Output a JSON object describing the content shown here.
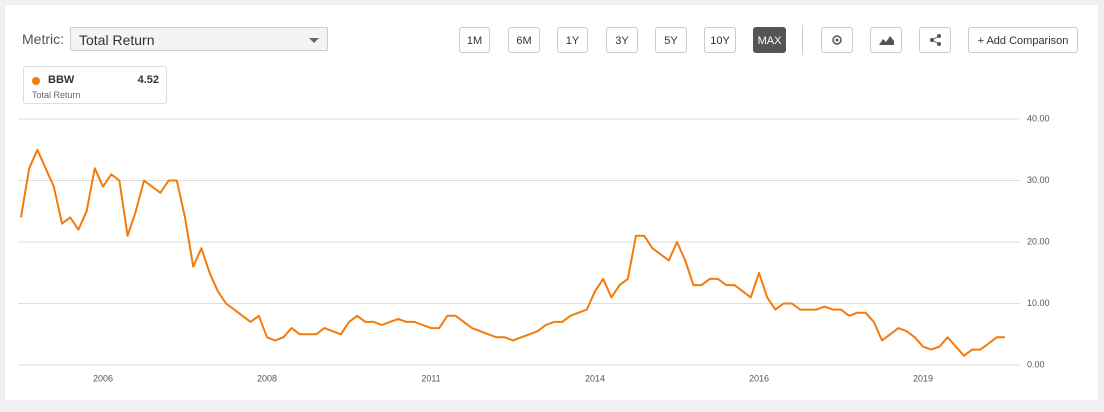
{
  "ui": {
    "metric_label": "Metric:",
    "metric_value": "Total Return",
    "ranges": [
      "1M",
      "6M",
      "1Y",
      "3Y",
      "5Y",
      "10Y",
      "MAX"
    ],
    "add_comparison": "+ Add Comparison",
    "legend": {
      "value": 4.52,
      "subtitle": "Total Return"
    }
  },
  "chart_data": {
    "type": "line",
    "categories": [
      null,
      null,
      null,
      null,
      null,
      null,
      null,
      null,
      null,
      null,
      "2006",
      null,
      null,
      null,
      null,
      null,
      null,
      null,
      null,
      null,
      null,
      null,
      null,
      null,
      null,
      null,
      null,
      null,
      null,
      null,
      "2008",
      null,
      null,
      null,
      null,
      null,
      null,
      null,
      null,
      null,
      null,
      null,
      null,
      null,
      null,
      null,
      null,
      null,
      null,
      null,
      "2011",
      null,
      null,
      null,
      null,
      null,
      null,
      null,
      null,
      null,
      null,
      null,
      null,
      null,
      null,
      null,
      null,
      null,
      null,
      null,
      "2014",
      null,
      null,
      null,
      null,
      null,
      null,
      null,
      null,
      null,
      null,
      null,
      null,
      null,
      null,
      null,
      null,
      null,
      null,
      null,
      "2016",
      null,
      null,
      null,
      null,
      null,
      null,
      null,
      null,
      null,
      null,
      null,
      null,
      null,
      null,
      null,
      null,
      null,
      null,
      null,
      "2019",
      null,
      null,
      null,
      null,
      null,
      null,
      null,
      null,
      null,
      null
    ],
    "series": [
      {
        "name": "BBW",
        "color": "#f47b0b",
        "values": [
          24,
          32,
          35,
          32,
          29,
          23,
          24,
          22,
          25,
          32,
          29,
          31,
          30,
          21,
          25,
          30,
          29,
          28,
          30,
          30,
          24,
          16,
          19,
          15,
          12,
          10,
          9,
          8,
          7,
          8,
          4.5,
          4,
          4.5,
          6,
          5,
          5,
          5,
          6,
          5.5,
          5,
          7,
          8,
          7,
          7,
          6.5,
          7,
          7.5,
          7,
          7,
          6.5,
          6,
          6,
          8,
          8,
          7,
          6,
          5.5,
          5,
          4.5,
          4.5,
          4,
          4.5,
          5,
          5.5,
          6.5,
          7,
          7,
          8,
          8.5,
          9,
          12,
          14,
          11,
          13,
          14,
          21,
          21,
          19,
          18,
          17,
          20,
          17,
          13,
          13,
          14,
          14,
          13,
          13,
          12,
          11,
          15,
          11,
          9,
          10,
          10,
          9,
          9,
          9,
          9.5,
          9,
          9,
          8,
          8.5,
          8.5,
          7,
          4,
          5,
          6,
          5.5,
          4.5,
          3,
          2.5,
          3,
          4.5,
          3,
          1.5,
          2.5,
          2.5,
          3.5,
          4.5,
          4.52
        ]
      }
    ],
    "ylim": [
      0,
      40
    ],
    "yticks": [
      {
        "value": 0,
        "label": "0.00"
      },
      {
        "value": 10,
        "label": "10.00"
      },
      {
        "value": 20,
        "label": "20.00"
      },
      {
        "value": 30,
        "label": "30.00"
      },
      {
        "value": 40,
        "label": "40.00"
      }
    ],
    "grid": true
  }
}
